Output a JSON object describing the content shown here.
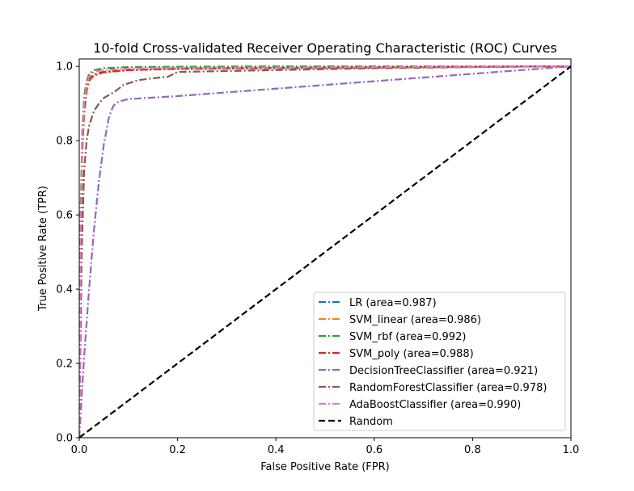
{
  "chart_data": {
    "type": "line",
    "title": "10-fold Cross-validated Receiver Operating Characteristic (ROC) Curves",
    "xlabel": "False Positive Rate (FPR)",
    "ylabel": "True Positive Rate (TPR)",
    "xlim": [
      0,
      1
    ],
    "ylim": [
      0,
      1.02
    ],
    "xticks": [
      "0.0",
      "0.2",
      "0.4",
      "0.6",
      "0.8",
      "1.0"
    ],
    "yticks": [
      "0.0",
      "0.2",
      "0.4",
      "0.6",
      "0.8",
      "1.0"
    ],
    "grid": false,
    "legend_position": "lower-right",
    "series": [
      {
        "name": "LR (area=0.987)",
        "color": "#1f77b4",
        "style": "dashdot",
        "x": [
          0,
          0.003,
          0.006,
          0.01,
          0.015,
          0.02,
          0.03,
          0.05,
          0.1,
          0.2,
          0.4,
          0.6,
          0.8,
          1.0
        ],
        "y": [
          0,
          0.55,
          0.78,
          0.88,
          0.94,
          0.965,
          0.978,
          0.985,
          0.99,
          0.993,
          0.995,
          0.997,
          0.999,
          1.0
        ]
      },
      {
        "name": "SVM_linear (area=0.986)",
        "color": "#ff7f0e",
        "style": "dashdot",
        "x": [
          0,
          0.003,
          0.006,
          0.01,
          0.015,
          0.02,
          0.03,
          0.05,
          0.1,
          0.2,
          0.4,
          0.6,
          0.8,
          1.0
        ],
        "y": [
          0,
          0.5,
          0.76,
          0.87,
          0.93,
          0.96,
          0.975,
          0.983,
          0.99,
          0.993,
          0.995,
          0.997,
          0.999,
          1.0
        ]
      },
      {
        "name": "SVM_rbf (area=0.992)",
        "color": "#2ca02c",
        "style": "dashdot",
        "x": [
          0,
          0.003,
          0.006,
          0.01,
          0.015,
          0.02,
          0.03,
          0.05,
          0.1,
          0.2,
          0.4,
          0.6,
          0.8,
          1.0
        ],
        "y": [
          0,
          0.62,
          0.82,
          0.92,
          0.96,
          0.98,
          0.99,
          0.995,
          0.998,
          0.999,
          1.0,
          1.0,
          1.0,
          1.0
        ]
      },
      {
        "name": "SVM_poly (area=0.988)",
        "color": "#d62728",
        "style": "dashdot",
        "x": [
          0,
          0.003,
          0.006,
          0.01,
          0.015,
          0.02,
          0.03,
          0.05,
          0.1,
          0.2,
          0.4,
          0.6,
          0.8,
          1.0
        ],
        "y": [
          0,
          0.52,
          0.77,
          0.88,
          0.94,
          0.965,
          0.977,
          0.985,
          0.99,
          0.994,
          0.996,
          0.997,
          0.999,
          1.0
        ]
      },
      {
        "name": "DecisionTreeClassifier (area=0.921)",
        "color": "#9467bd",
        "style": "dashdot",
        "x": [
          0,
          0.01,
          0.02,
          0.03,
          0.04,
          0.05,
          0.06,
          0.065,
          0.07,
          0.08,
          0.1,
          0.2,
          0.4,
          0.6,
          0.8,
          1.0
        ],
        "y": [
          0,
          0.22,
          0.4,
          0.56,
          0.69,
          0.79,
          0.86,
          0.88,
          0.895,
          0.905,
          0.912,
          0.92,
          0.94,
          0.96,
          0.98,
          1.0
        ]
      },
      {
        "name": "RandomForestClassifier (area=0.978)",
        "color": "#8c564b",
        "style": "dashdot",
        "x": [
          0,
          0.005,
          0.01,
          0.015,
          0.02,
          0.03,
          0.04,
          0.05,
          0.07,
          0.09,
          0.12,
          0.15,
          0.18,
          0.2,
          0.4,
          0.6,
          0.8,
          1.0
        ],
        "y": [
          0,
          0.5,
          0.72,
          0.8,
          0.84,
          0.88,
          0.9,
          0.915,
          0.93,
          0.95,
          0.963,
          0.968,
          0.972,
          0.985,
          0.99,
          0.995,
          0.998,
          1.0
        ]
      },
      {
        "name": "AdaBoostClassifier (area=0.990)",
        "color": "#e377c2",
        "style": "dashdot",
        "x": [
          0,
          0.003,
          0.006,
          0.01,
          0.015,
          0.02,
          0.03,
          0.05,
          0.1,
          0.2,
          0.4,
          0.6,
          0.8,
          1.0
        ],
        "y": [
          0,
          0.56,
          0.79,
          0.9,
          0.95,
          0.972,
          0.985,
          0.99,
          0.994,
          0.996,
          0.997,
          0.998,
          0.999,
          1.0
        ]
      },
      {
        "name": "Random",
        "color": "#000000",
        "style": "dashed",
        "x": [
          0,
          1
        ],
        "y": [
          0,
          1
        ]
      }
    ]
  }
}
